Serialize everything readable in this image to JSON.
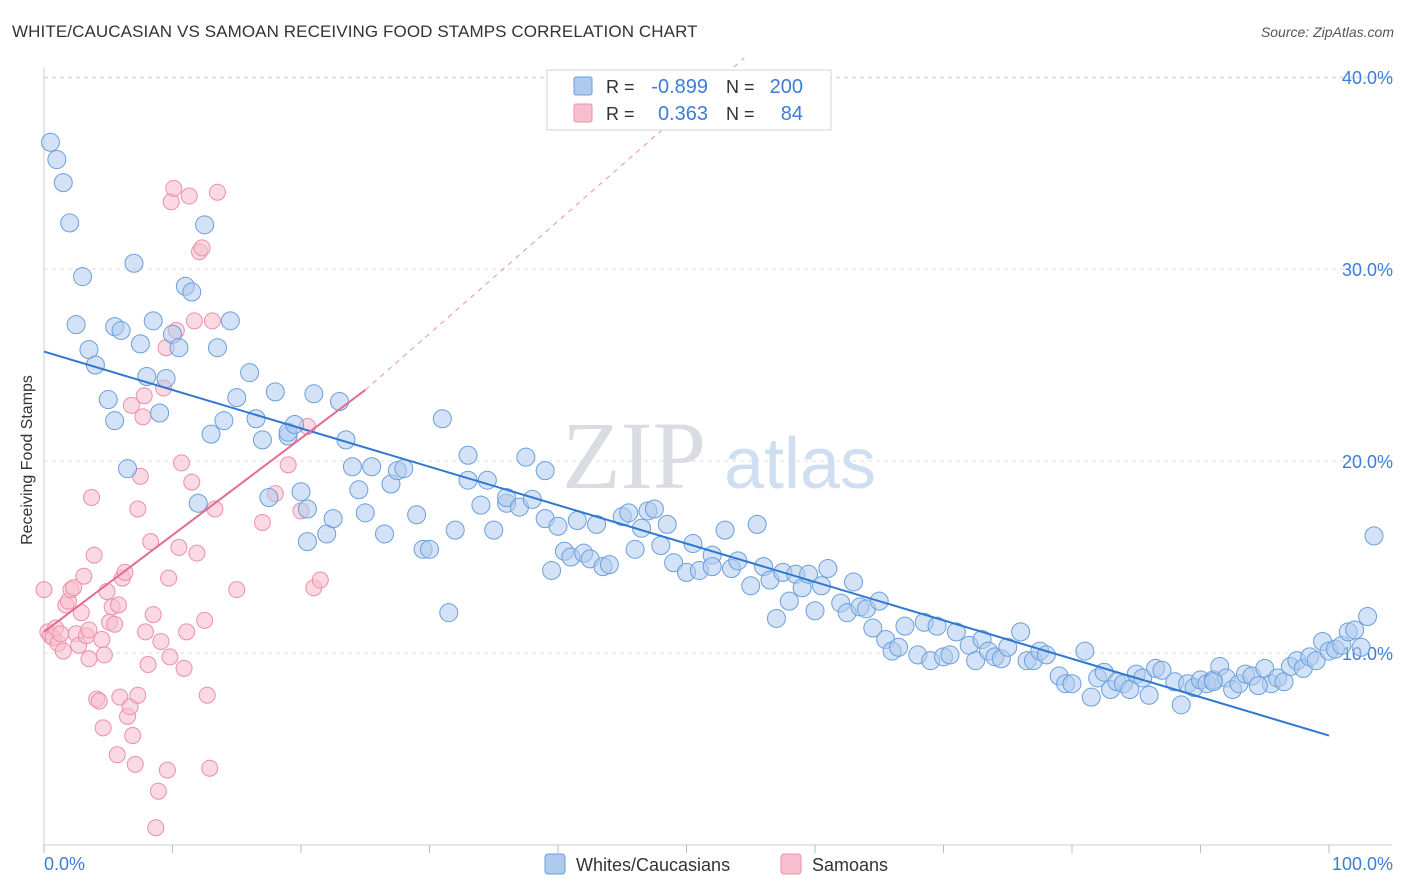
{
  "title": "WHITE/CAUCASIAN VS SAMOAN RECEIVING FOOD STAMPS CORRELATION CHART",
  "source": "Source: ZipAtlas.com",
  "watermark": {
    "part1": "ZIP",
    "part2": "atlas"
  },
  "colors": {
    "blue_fill": "#aecbee",
    "blue_stroke": "#6a9fdc",
    "blue_line": "#2f78d0",
    "pink_fill": "#f7bfcf",
    "pink_stroke": "#ec8fab",
    "pink_line": "#e46a93",
    "axis_text": "#3b7dd8",
    "grid": "#dddddd"
  },
  "chart_data": {
    "type": "scatter",
    "xlabel": "",
    "ylabel": "Receiving Food Stamps",
    "xlim": [
      0,
      100
    ],
    "ylim": [
      0,
      41
    ],
    "x_tick_labels": {
      "0": "0.0%",
      "100": "100.0%"
    },
    "y_ticks": [
      10,
      20,
      30,
      40
    ],
    "y_tick_labels": [
      "10.0%",
      "20.0%",
      "30.0%",
      "40.0%"
    ],
    "legend": {
      "position": "top-center",
      "rows": [
        {
          "r_label": "R =",
          "r_value": "-0.899",
          "n_label": "N =",
          "n_value": "200"
        },
        {
          "r_label": "R =",
          "r_value": "0.363",
          "n_label": "N =",
          "n_value": "84"
        }
      ]
    },
    "bottom_legend": [
      "Whites/Caucasians",
      "Samoans"
    ],
    "series": [
      {
        "name": "Whites/Caucasians",
        "trend": {
          "x0": 0,
          "y0": 25.7,
          "x1": 100,
          "y1": 5.7
        },
        "points": [
          [
            0.5,
            36.6
          ],
          [
            1,
            35.7
          ],
          [
            1.5,
            34.5
          ],
          [
            2,
            32.4
          ],
          [
            3,
            29.6
          ],
          [
            2.5,
            27.1
          ],
          [
            3.5,
            25.8
          ],
          [
            4,
            25
          ],
          [
            5,
            23.2
          ],
          [
            5.5,
            27
          ],
          [
            5.5,
            22.1
          ],
          [
            6,
            26.8
          ],
          [
            6.5,
            19.6
          ],
          [
            7,
            30.3
          ],
          [
            7.5,
            26.1
          ],
          [
            8,
            24.4
          ],
          [
            8.5,
            27.3
          ],
          [
            9,
            22.5
          ],
          [
            9.5,
            24.3
          ],
          [
            10,
            26.6
          ],
          [
            10.5,
            25.9
          ],
          [
            11,
            29.1
          ],
          [
            11.5,
            28.8
          ],
          [
            12,
            17.8
          ],
          [
            12.5,
            32.3
          ],
          [
            13,
            21.4
          ],
          [
            13.5,
            25.9
          ],
          [
            14,
            22.1
          ],
          [
            14.5,
            27.3
          ],
          [
            15,
            23.3
          ],
          [
            16,
            24.6
          ],
          [
            16.5,
            22.2
          ],
          [
            17,
            21.1
          ],
          [
            17.5,
            18.1
          ],
          [
            18,
            23.6
          ],
          [
            19,
            21.3
          ],
          [
            19,
            21.5
          ],
          [
            19.5,
            21.9
          ],
          [
            20,
            18.4
          ],
          [
            20.5,
            15.8
          ],
          [
            20.5,
            17.5
          ],
          [
            21,
            23.5
          ],
          [
            22,
            16.2
          ],
          [
            22.5,
            17
          ],
          [
            23,
            23.1
          ],
          [
            23.5,
            21.1
          ],
          [
            24,
            19.7
          ],
          [
            24.5,
            18.5
          ],
          [
            25,
            17.3
          ],
          [
            25.5,
            19.7
          ],
          [
            26.5,
            16.2
          ],
          [
            27,
            18.8
          ],
          [
            27.5,
            19.5
          ],
          [
            28,
            19.6
          ],
          [
            29,
            17.2
          ],
          [
            29.5,
            15.4
          ],
          [
            30,
            15.4
          ],
          [
            31,
            22.2
          ],
          [
            31.5,
            12.1
          ],
          [
            32,
            16.4
          ],
          [
            33,
            19
          ],
          [
            33,
            20.3
          ],
          [
            34,
            17.7
          ],
          [
            34.5,
            19
          ],
          [
            35,
            16.4
          ],
          [
            36,
            17.8
          ],
          [
            36,
            18.1
          ],
          [
            37,
            17.6
          ],
          [
            37.5,
            20.2
          ],
          [
            38,
            18
          ],
          [
            39,
            17
          ],
          [
            39,
            19.5
          ],
          [
            39.5,
            14.3
          ],
          [
            40,
            16.6
          ],
          [
            40.5,
            15.3
          ],
          [
            41,
            15
          ],
          [
            41.5,
            16.9
          ],
          [
            42,
            15.2
          ],
          [
            42.5,
            14.9
          ],
          [
            43,
            16.7
          ],
          [
            43.5,
            14.5
          ],
          [
            44,
            14.6
          ],
          [
            45,
            17.1
          ],
          [
            45.5,
            17.3
          ],
          [
            46,
            15.4
          ],
          [
            46.5,
            16.5
          ],
          [
            47,
            17.4
          ],
          [
            47.5,
            17.5
          ],
          [
            48,
            15.6
          ],
          [
            48.5,
            16.7
          ],
          [
            49,
            14.7
          ],
          [
            50,
            14.2
          ],
          [
            50.5,
            15.7
          ],
          [
            51,
            14.3
          ],
          [
            52,
            15.1
          ],
          [
            52,
            14.5
          ],
          [
            53,
            16.4
          ],
          [
            53.5,
            14.4
          ],
          [
            54,
            14.8
          ],
          [
            55,
            13.5
          ],
          [
            55.5,
            16.7
          ],
          [
            56,
            14.5
          ],
          [
            56.5,
            13.8
          ],
          [
            57,
            11.8
          ],
          [
            57.5,
            14.2
          ],
          [
            58,
            12.7
          ],
          [
            58.5,
            14.1
          ],
          [
            59,
            13.4
          ],
          [
            59.5,
            14.1
          ],
          [
            60,
            12.2
          ],
          [
            60.5,
            13.5
          ],
          [
            61,
            14.4
          ],
          [
            62,
            12.6
          ],
          [
            62.5,
            12.1
          ],
          [
            63,
            13.7
          ],
          [
            63.5,
            12.4
          ],
          [
            64,
            12.3
          ],
          [
            64.5,
            11.3
          ],
          [
            65,
            12.7
          ],
          [
            65.5,
            10.7
          ],
          [
            66,
            10.1
          ],
          [
            66.5,
            10.3
          ],
          [
            67,
            11.4
          ],
          [
            68,
            9.9
          ],
          [
            68.5,
            11.6
          ],
          [
            69,
            9.6
          ],
          [
            69.5,
            11.4
          ],
          [
            70,
            9.8
          ],
          [
            70.5,
            9.9
          ],
          [
            71,
            11.1
          ],
          [
            72,
            10.4
          ],
          [
            72.5,
            9.6
          ],
          [
            73,
            10.7
          ],
          [
            73.5,
            10.1
          ],
          [
            74,
            9.8
          ],
          [
            74.5,
            9.7
          ],
          [
            75,
            10.3
          ],
          [
            76,
            11.1
          ],
          [
            76.5,
            9.6
          ],
          [
            77,
            9.6
          ],
          [
            77.5,
            10.1
          ],
          [
            78,
            9.9
          ],
          [
            79,
            8.8
          ],
          [
            79.5,
            8.4
          ],
          [
            80,
            8.4
          ],
          [
            81,
            10.1
          ],
          [
            81.5,
            7.7
          ],
          [
            82,
            8.7
          ],
          [
            82.5,
            9
          ],
          [
            83,
            8.1
          ],
          [
            83.5,
            8.5
          ],
          [
            84,
            8.4
          ],
          [
            84.5,
            8.1
          ],
          [
            85,
            8.9
          ],
          [
            85.5,
            8.7
          ],
          [
            86,
            7.8
          ],
          [
            86.5,
            9.2
          ],
          [
            87,
            9.1
          ],
          [
            88,
            8.5
          ],
          [
            88.5,
            7.3
          ],
          [
            89,
            8.4
          ],
          [
            89.5,
            8.2
          ],
          [
            90,
            8.6
          ],
          [
            90.5,
            8.4
          ],
          [
            91,
            8.6
          ],
          [
            91.5,
            9.3
          ],
          [
            92,
            8.7
          ],
          [
            92.5,
            8.1
          ],
          [
            93,
            8.4
          ],
          [
            93.5,
            8.9
          ],
          [
            94,
            8.8
          ],
          [
            95,
            9.2
          ],
          [
            95.5,
            8.4
          ],
          [
            96,
            8.7
          ],
          [
            96.5,
            8.5
          ],
          [
            97,
            9.3
          ],
          [
            97.5,
            9.6
          ],
          [
            98,
            9.2
          ],
          [
            98.5,
            9.8
          ],
          [
            99,
            9.6
          ],
          [
            99.5,
            10.6
          ],
          [
            100,
            10.1
          ],
          [
            100.5,
            10.2
          ],
          [
            101,
            10.4
          ],
          [
            101.5,
            11.1
          ],
          [
            102,
            11.2
          ],
          [
            102.5,
            10.3
          ],
          [
            103,
            11.9
          ],
          [
            103.5,
            16.1
          ],
          [
            94.5,
            8.3
          ],
          [
            91,
            8.5
          ]
        ]
      },
      {
        "name": "Samoans",
        "trend": {
          "x0": 0,
          "y0": 11.1,
          "x1": 25,
          "y1": 23.7
        },
        "ext": {
          "x0": 25,
          "y0": 23.7,
          "x1": 54.5,
          "y1": 41
        },
        "points": [
          [
            0,
            13.3
          ],
          [
            0.3,
            11.1
          ],
          [
            0.5,
            10.9
          ],
          [
            0.7,
            10.8
          ],
          [
            0.9,
            11.3
          ],
          [
            1.1,
            10.5
          ],
          [
            1.3,
            11
          ],
          [
            1.5,
            10.1
          ],
          [
            1.7,
            12.5
          ],
          [
            1.9,
            12.7
          ],
          [
            2.1,
            13.3
          ],
          [
            2.3,
            13.4
          ],
          [
            2.5,
            11
          ],
          [
            2.7,
            10.4
          ],
          [
            2.9,
            12.1
          ],
          [
            3.1,
            14
          ],
          [
            3.3,
            10.9
          ],
          [
            3.5,
            11.2
          ],
          [
            3.7,
            18.1
          ],
          [
            3.9,
            15.1
          ],
          [
            4.1,
            7.6
          ],
          [
            4.3,
            7.5
          ],
          [
            4.5,
            10.7
          ],
          [
            4.7,
            9.9
          ],
          [
            4.9,
            13.2
          ],
          [
            5.1,
            11.6
          ],
          [
            5.3,
            12.4
          ],
          [
            5.5,
            11.5
          ],
          [
            5.7,
            4.7
          ],
          [
            5.9,
            7.7
          ],
          [
            6.1,
            13.9
          ],
          [
            6.3,
            14.2
          ],
          [
            6.5,
            6.7
          ],
          [
            6.7,
            7.2
          ],
          [
            6.9,
            5.7
          ],
          [
            7.1,
            4.2
          ],
          [
            7.3,
            17.5
          ],
          [
            7.5,
            19.2
          ],
          [
            7.7,
            22.3
          ],
          [
            7.9,
            11.1
          ],
          [
            8.1,
            9.4
          ],
          [
            8.3,
            15.8
          ],
          [
            8.5,
            12
          ],
          [
            8.7,
            0.9
          ],
          [
            8.9,
            2.8
          ],
          [
            9.1,
            10.6
          ],
          [
            9.3,
            23.8
          ],
          [
            9.5,
            25.9
          ],
          [
            9.7,
            13.9
          ],
          [
            9.9,
            33.5
          ],
          [
            10.1,
            34.2
          ],
          [
            10.3,
            26.8
          ],
          [
            10.5,
            15.5
          ],
          [
            10.7,
            19.9
          ],
          [
            10.9,
            9.2
          ],
          [
            11.1,
            11.1
          ],
          [
            11.3,
            33.8
          ],
          [
            11.5,
            18.9
          ],
          [
            11.7,
            27.3
          ],
          [
            11.9,
            15.2
          ],
          [
            12.1,
            30.9
          ],
          [
            12.3,
            31.1
          ],
          [
            12.5,
            11.7
          ],
          [
            12.7,
            7.8
          ],
          [
            12.9,
            4
          ],
          [
            13.1,
            27.3
          ],
          [
            13.3,
            17.5
          ],
          [
            13.5,
            34
          ],
          [
            15,
            13.3
          ],
          [
            17,
            16.8
          ],
          [
            18,
            18.3
          ],
          [
            19,
            19.8
          ],
          [
            20,
            17.4
          ],
          [
            20.5,
            21.8
          ],
          [
            21,
            13.4
          ],
          [
            21.5,
            13.8
          ],
          [
            6.8,
            22.9
          ],
          [
            5.8,
            12.5
          ],
          [
            7.8,
            23.4
          ],
          [
            9.8,
            9.8
          ],
          [
            3.5,
            9.7
          ],
          [
            4.6,
            6.1
          ],
          [
            7.3,
            7.8
          ],
          [
            9.6,
            3.9
          ]
        ]
      }
    ]
  }
}
